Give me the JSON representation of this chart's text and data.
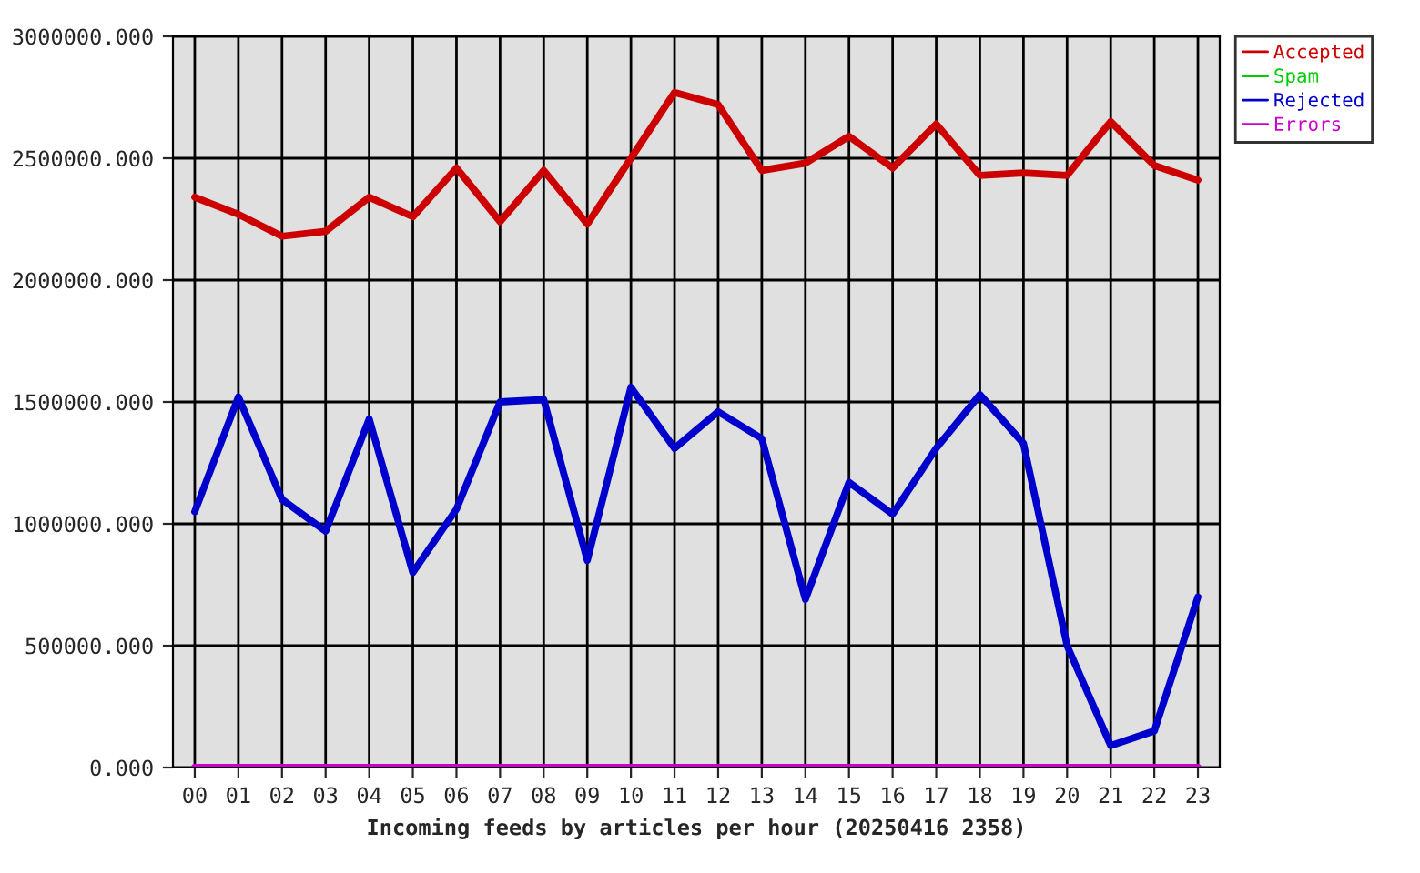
{
  "chart_data": {
    "type": "line",
    "xlabel": "Incoming feeds by articles per hour (20250416 2358)",
    "categories": [
      "00",
      "01",
      "02",
      "03",
      "04",
      "05",
      "06",
      "07",
      "08",
      "09",
      "10",
      "11",
      "12",
      "13",
      "14",
      "15",
      "16",
      "17",
      "18",
      "19",
      "20",
      "21",
      "22",
      "23"
    ],
    "series": [
      {
        "name": "Accepted",
        "color": "#cc0000",
        "values": [
          2340000,
          2270000,
          2180000,
          2200000,
          2340000,
          2260000,
          2460000,
          2240000,
          2450000,
          2230000,
          2500000,
          2770000,
          2720000,
          2450000,
          2480000,
          2590000,
          2460000,
          2640000,
          2430000,
          2440000,
          2430000,
          2650000,
          2470000,
          2410000
        ]
      },
      {
        "name": "Spam",
        "color": "#00cc00",
        "values": [
          null,
          null,
          null,
          null,
          null,
          null,
          null,
          null,
          null,
          null,
          null,
          null,
          null,
          null,
          null,
          null,
          null,
          null,
          null,
          null,
          null,
          null,
          null,
          null
        ]
      },
      {
        "name": "Rejected",
        "color": "#0000cc",
        "values": [
          1050000,
          1520000,
          1100000,
          970000,
          1430000,
          800000,
          1060000,
          1500000,
          1510000,
          850000,
          1560000,
          1310000,
          1460000,
          1350000,
          690000,
          1170000,
          1040000,
          1310000,
          1530000,
          1330000,
          500000,
          90000,
          150000,
          700000
        ]
      },
      {
        "name": "Errors",
        "color": "#cc00cc",
        "values": [
          0,
          0,
          0,
          0,
          0,
          0,
          0,
          0,
          0,
          0,
          0,
          0,
          0,
          0,
          0,
          0,
          0,
          0,
          0,
          0,
          0,
          0,
          0,
          0
        ]
      }
    ],
    "ylim": [
      0,
      3000000
    ],
    "yticks": [
      {
        "value": 0,
        "label": "0.000"
      },
      {
        "value": 500000,
        "label": "500000.000"
      },
      {
        "value": 1000000,
        "label": "1000000.000"
      },
      {
        "value": 1500000,
        "label": "1500000.000"
      },
      {
        "value": 2000000,
        "label": "2000000.000"
      },
      {
        "value": 2500000,
        "label": "2500000.000"
      },
      {
        "value": 3000000,
        "label": "3000000.000"
      }
    ],
    "grid": true,
    "legend": "top right",
    "line_style": "solid"
  }
}
